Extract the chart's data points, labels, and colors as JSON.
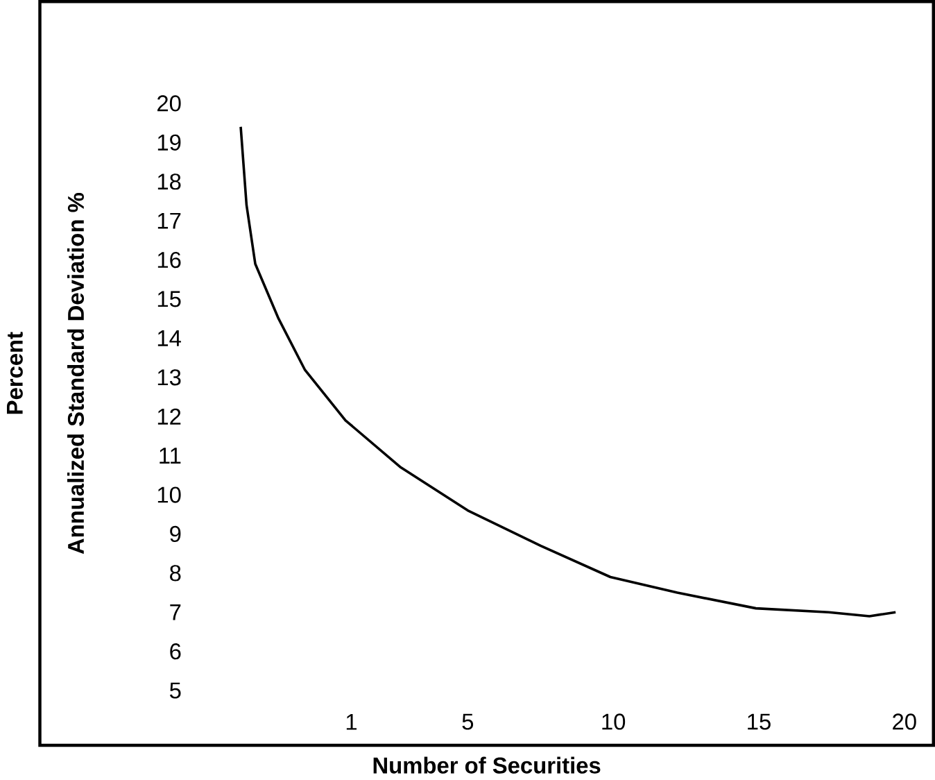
{
  "chart_data": {
    "type": "line",
    "xlabel": "Number of Securities",
    "ylabel": "Annualized Standard Deviation %",
    "annotations": [
      "Percent"
    ],
    "xlim": [
      -9.7,
      21
    ],
    "ylim": [
      3.6,
      22.6
    ],
    "xticks": [
      1,
      5,
      10,
      15,
      20
    ],
    "yticks": [
      5,
      6,
      7,
      8,
      9,
      10,
      11,
      12,
      13,
      14,
      15,
      16,
      17,
      18,
      19,
      20
    ],
    "grid": false,
    "marker": "none",
    "line_style": "solid",
    "series": [
      {
        "color": "#000000",
        "x": [
          -2.8,
          -2.6,
          -2.3,
          -1.5,
          -0.6,
          0.8,
          2.7,
          5,
          7.5,
          9.9,
          12.2,
          14.9,
          17.4,
          18.8,
          19.7
        ],
        "values": [
          19.4,
          17.4,
          15.9,
          14.5,
          13.2,
          11.9,
          10.7,
          9.6,
          8.7,
          7.9,
          7.5,
          7.1,
          7.0,
          6.9,
          7.0
        ]
      }
    ]
  }
}
